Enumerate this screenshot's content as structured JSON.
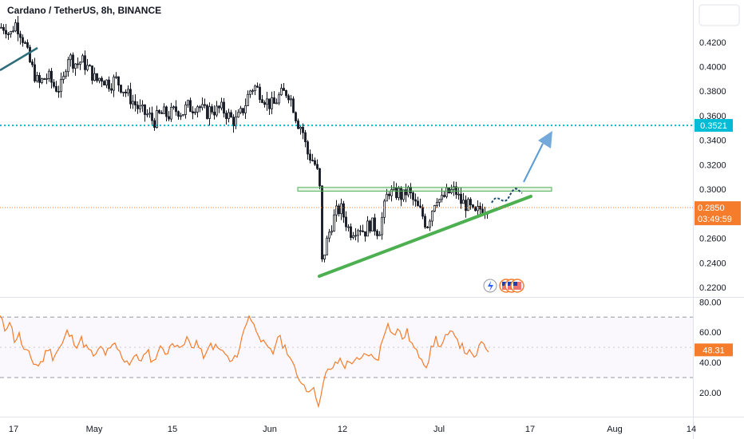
{
  "header": {
    "title": "Cardano / TetherUS, 8h, BINANCE"
  },
  "colors": {
    "up": "#26a69a",
    "down": "#ef5350",
    "candle": "#131722",
    "rsi": "#f57c2b",
    "support": "#4caf50",
    "target_line": "#00bcd4",
    "arrow": "#5b9bd5",
    "price_tag": "#f57c2b"
  },
  "price_tags": {
    "target": "0.3521",
    "last_price": "0.2850",
    "countdown": "03:49:59"
  },
  "rsi_tag": "48.31",
  "icons": [
    "lightning-icon",
    "us-flag-icon",
    "us-flag-icon",
    "us-flag-icon"
  ],
  "chart_data": [
    {
      "type": "candlestick",
      "title": "Cardano / TetherUS, 8h, BINANCE",
      "x_ticks": [
        "17",
        "May",
        "15",
        "Jun",
        "12",
        "Jul",
        "17",
        "Aug",
        "14"
      ],
      "y_ticks": [
        "0.2200",
        "0.2400",
        "0.2600",
        "0.2800",
        "0.3000",
        "0.3200",
        "0.3400",
        "0.3600",
        "0.3800",
        "0.4000",
        "0.4200"
      ],
      "ylim": [
        0.215,
        0.44
      ],
      "target_level": 0.3521,
      "resistance_zone": [
        0.2985,
        0.3015
      ],
      "last_price": 0.285,
      "close_path": [
        [
          0,
          0.432
        ],
        [
          6,
          0.433
        ],
        [
          12,
          0.425
        ],
        [
          18,
          0.436
        ],
        [
          24,
          0.43
        ],
        [
          30,
          0.42
        ],
        [
          36,
          0.405
        ],
        [
          42,
          0.395
        ],
        [
          48,
          0.385
        ],
        [
          54,
          0.39
        ],
        [
          60,
          0.392
        ],
        [
          66,
          0.385
        ],
        [
          72,
          0.382
        ],
        [
          78,
          0.385
        ],
        [
          84,
          0.41
        ],
        [
          90,
          0.405
        ],
        [
          96,
          0.402
        ],
        [
          102,
          0.405
        ],
        [
          108,
          0.4
        ],
        [
          114,
          0.395
        ],
        [
          120,
          0.388
        ],
        [
          126,
          0.392
        ],
        [
          132,
          0.388
        ],
        [
          138,
          0.386
        ],
        [
          144,
          0.39
        ],
        [
          150,
          0.385
        ],
        [
          156,
          0.38
        ],
        [
          162,
          0.375
        ],
        [
          168,
          0.37
        ],
        [
          174,
          0.365
        ],
        [
          180,
          0.362
        ],
        [
          186,
          0.36
        ],
        [
          192,
          0.355
        ],
        [
          198,
          0.36
        ],
        [
          204,
          0.362
        ],
        [
          210,
          0.36
        ],
        [
          216,
          0.363
        ],
        [
          222,
          0.365
        ],
        [
          228,
          0.362
        ],
        [
          234,
          0.368
        ],
        [
          240,
          0.366
        ],
        [
          246,
          0.37
        ],
        [
          252,
          0.365
        ],
        [
          258,
          0.362
        ],
        [
          264,
          0.366
        ],
        [
          270,
          0.364
        ],
        [
          276,
          0.366
        ],
        [
          282,
          0.363
        ],
        [
          288,
          0.358
        ],
        [
          294,
          0.355
        ],
        [
          300,
          0.36
        ],
        [
          306,
          0.368
        ],
        [
          312,
          0.38
        ],
        [
          318,
          0.384
        ],
        [
          324,
          0.38
        ],
        [
          330,
          0.375
        ],
        [
          336,
          0.37
        ],
        [
          342,
          0.368
        ],
        [
          348,
          0.375
        ],
        [
          354,
          0.378
        ],
        [
          360,
          0.38
        ],
        [
          366,
          0.37
        ],
        [
          372,
          0.355
        ],
        [
          378,
          0.35
        ],
        [
          384,
          0.33
        ],
        [
          390,
          0.325
        ],
        [
          396,
          0.318
        ],
        [
          400,
          0.3
        ],
        [
          403,
          0.24
        ],
        [
          408,
          0.255
        ],
        [
          414,
          0.27
        ],
        [
          420,
          0.28
        ],
        [
          426,
          0.285
        ],
        [
          432,
          0.275
        ],
        [
          438,
          0.265
        ],
        [
          444,
          0.268
        ],
        [
          450,
          0.27
        ],
        [
          456,
          0.265
        ],
        [
          462,
          0.272
        ],
        [
          468,
          0.27
        ],
        [
          474,
          0.265
        ],
        [
          480,
          0.282
        ],
        [
          486,
          0.3
        ],
        [
          492,
          0.295
        ],
        [
          498,
          0.298
        ],
        [
          504,
          0.293
        ],
        [
          510,
          0.3
        ],
        [
          516,
          0.292
        ],
        [
          522,
          0.285
        ],
        [
          528,
          0.28
        ],
        [
          534,
          0.27
        ],
        [
          540,
          0.282
        ],
        [
          546,
          0.295
        ],
        [
          552,
          0.29
        ],
        [
          558,
          0.296
        ],
        [
          564,
          0.298
        ],
        [
          570,
          0.299
        ],
        [
          576,
          0.29
        ],
        [
          582,
          0.288
        ],
        [
          588,
          0.285
        ],
        [
          594,
          0.278
        ],
        [
          600,
          0.284
        ],
        [
          606,
          0.285
        ],
        [
          612,
          0.286
        ]
      ]
    },
    {
      "type": "line",
      "title": "RSI",
      "y_ticks": [
        "20.00",
        "40.00",
        "60.00",
        "80.00"
      ],
      "ylim": [
        10,
        85
      ],
      "bands": [
        30,
        70
      ],
      "last_value": 48.31,
      "series": [
        [
          0,
          70
        ],
        [
          6,
          62
        ],
        [
          12,
          68
        ],
        [
          18,
          55
        ],
        [
          24,
          58
        ],
        [
          30,
          48
        ],
        [
          36,
          45
        ],
        [
          42,
          40
        ],
        [
          48,
          38
        ],
        [
          54,
          42
        ],
        [
          60,
          50
        ],
        [
          66,
          44
        ],
        [
          72,
          48
        ],
        [
          78,
          52
        ],
        [
          84,
          60
        ],
        [
          90,
          56
        ],
        [
          96,
          52
        ],
        [
          102,
          55
        ],
        [
          108,
          50
        ],
        [
          114,
          46
        ],
        [
          120,
          44
        ],
        [
          126,
          50
        ],
        [
          132,
          46
        ],
        [
          138,
          48
        ],
        [
          144,
          52
        ],
        [
          150,
          46
        ],
        [
          156,
          42
        ],
        [
          162,
          40
        ],
        [
          168,
          44
        ],
        [
          174,
          42
        ],
        [
          180,
          44
        ],
        [
          186,
          46
        ],
        [
          192,
          40
        ],
        [
          198,
          48
        ],
        [
          204,
          50
        ],
        [
          210,
          46
        ],
        [
          216,
          52
        ],
        [
          222,
          54
        ],
        [
          228,
          48
        ],
        [
          234,
          56
        ],
        [
          240,
          50
        ],
        [
          246,
          54
        ],
        [
          252,
          46
        ],
        [
          258,
          44
        ],
        [
          264,
          52
        ],
        [
          270,
          50
        ],
        [
          276,
          48
        ],
        [
          282,
          46
        ],
        [
          288,
          40
        ],
        [
          294,
          42
        ],
        [
          300,
          50
        ],
        [
          306,
          62
        ],
        [
          312,
          72
        ],
        [
          318,
          64
        ],
        [
          324,
          60
        ],
        [
          330,
          52
        ],
        [
          336,
          48
        ],
        [
          342,
          46
        ],
        [
          348,
          58
        ],
        [
          354,
          52
        ],
        [
          360,
          48
        ],
        [
          366,
          40
        ],
        [
          372,
          30
        ],
        [
          378,
          28
        ],
        [
          384,
          22
        ],
        [
          390,
          24
        ],
        [
          396,
          18
        ],
        [
          400,
          12
        ],
        [
          403,
          20
        ],
        [
          408,
          32
        ],
        [
          414,
          36
        ],
        [
          420,
          38
        ],
        [
          426,
          42
        ],
        [
          432,
          38
        ],
        [
          438,
          40
        ],
        [
          444,
          42
        ],
        [
          450,
          40
        ],
        [
          456,
          44
        ],
        [
          462,
          46
        ],
        [
          468,
          42
        ],
        [
          474,
          44
        ],
        [
          480,
          56
        ],
        [
          486,
          68
        ],
        [
          492,
          58
        ],
        [
          498,
          62
        ],
        [
          504,
          56
        ],
        [
          510,
          60
        ],
        [
          516,
          52
        ],
        [
          522,
          46
        ],
        [
          528,
          44
        ],
        [
          534,
          38
        ],
        [
          540,
          48
        ],
        [
          546,
          56
        ],
        [
          552,
          50
        ],
        [
          558,
          56
        ],
        [
          564,
          58
        ],
        [
          570,
          60
        ],
        [
          576,
          52
        ],
        [
          582,
          48
        ],
        [
          588,
          46
        ],
        [
          594,
          42
        ],
        [
          600,
          50
        ],
        [
          606,
          52
        ],
        [
          612,
          48
        ]
      ]
    }
  ]
}
